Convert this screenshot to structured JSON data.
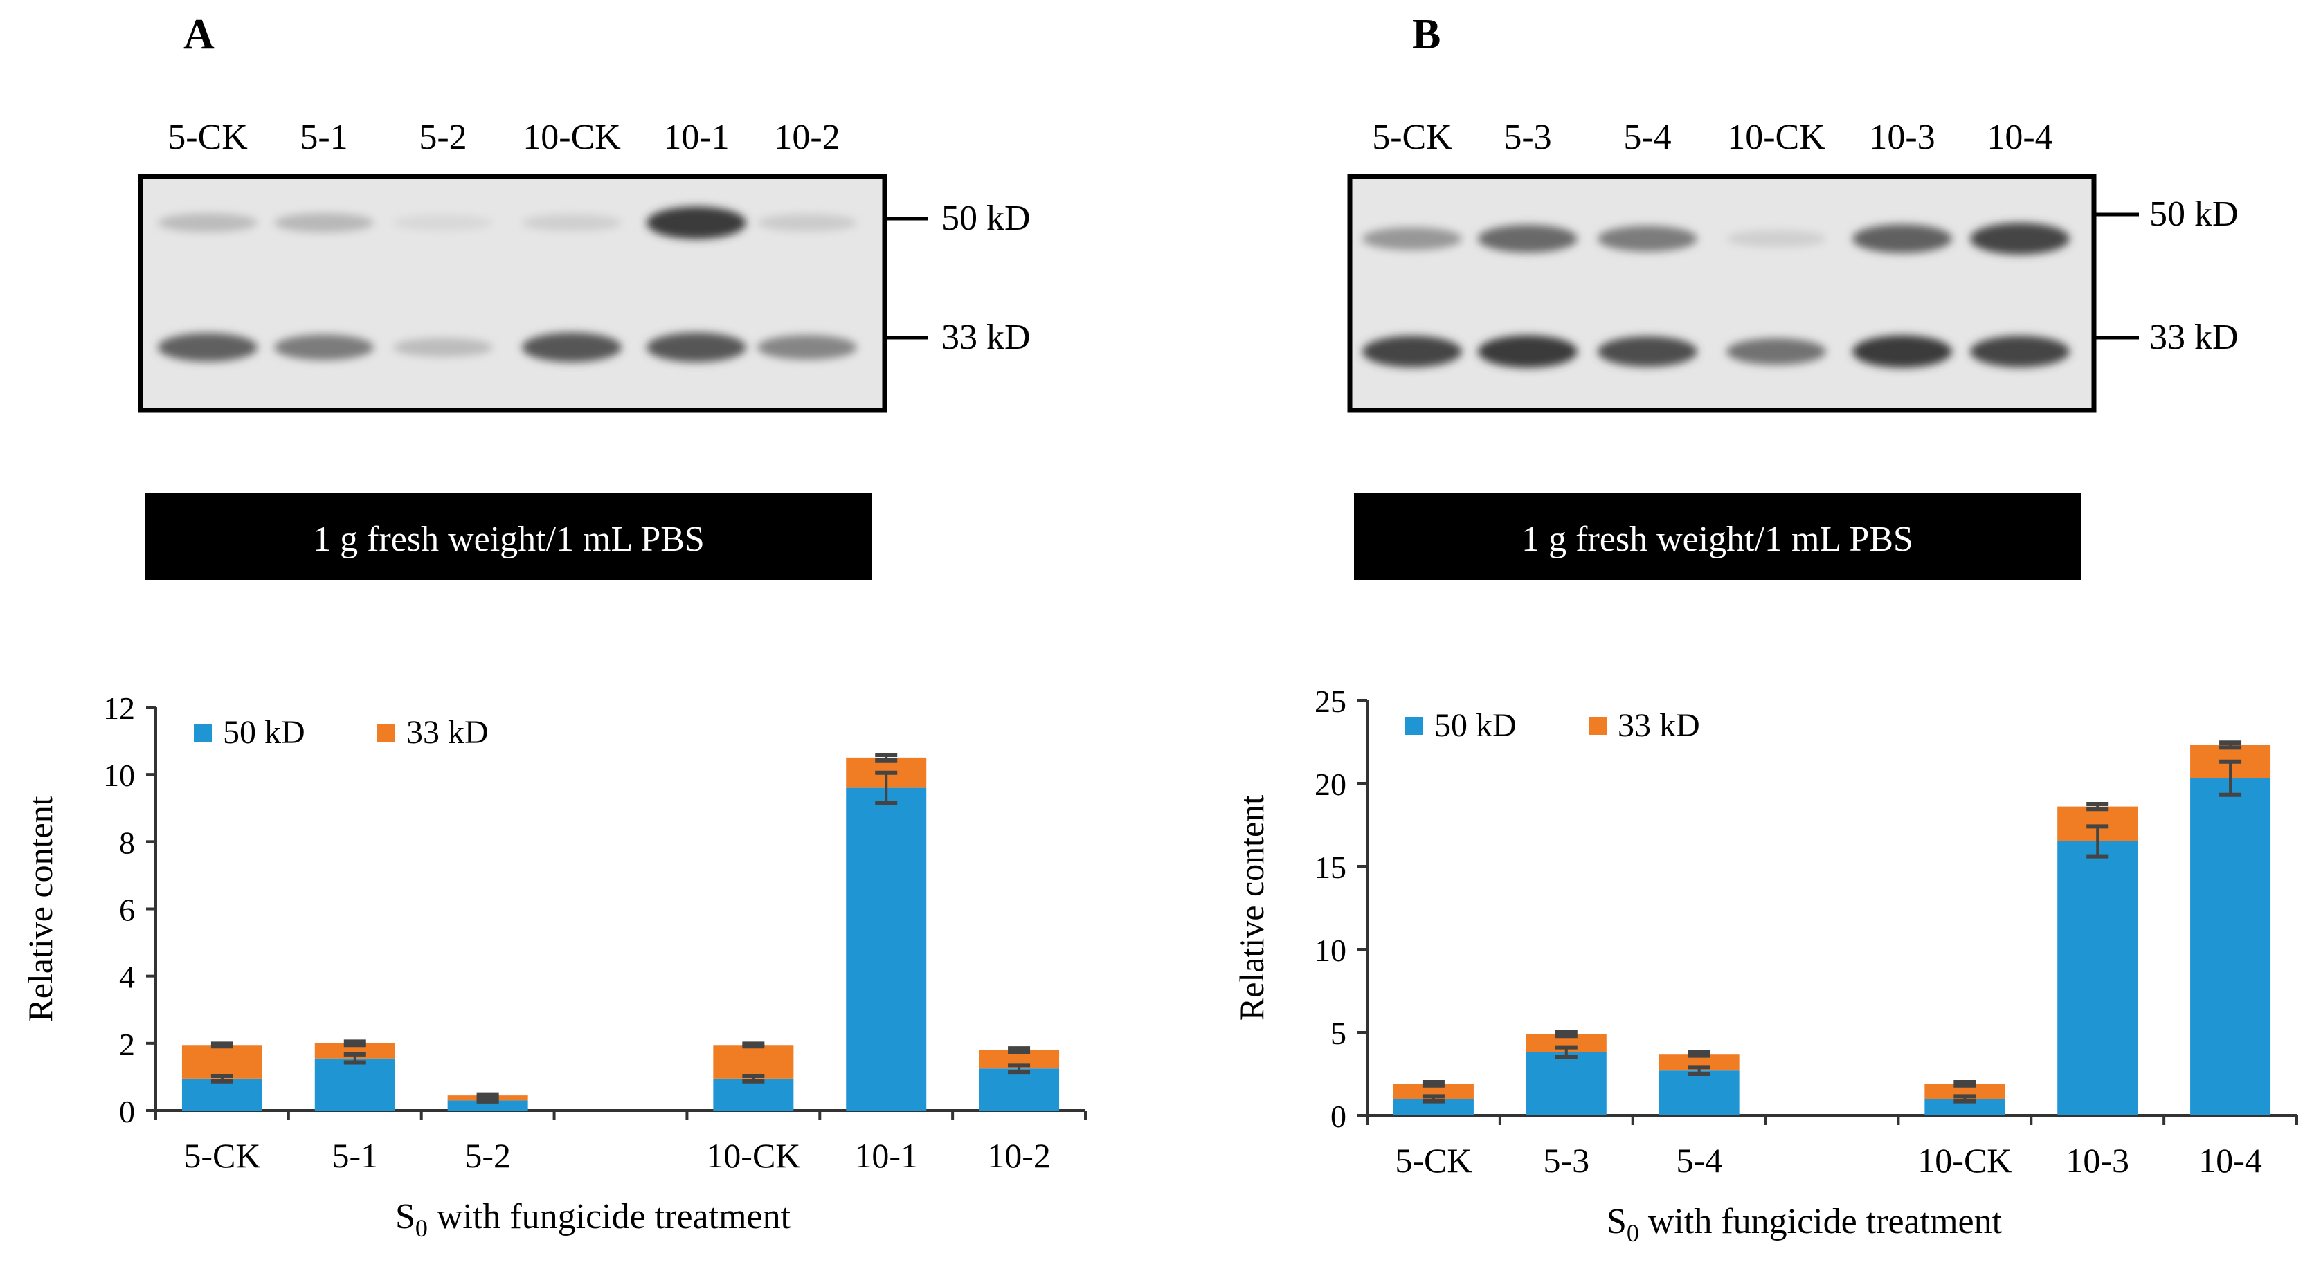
{
  "panels": [
    {
      "letter": "A",
      "lanes": [
        "5-CK",
        "5-1",
        "5-2",
        "10-CK",
        "10-1",
        "10-2"
      ],
      "band_markers": [
        "50 kD",
        "33 kD"
      ],
      "band_intensity": {
        "50 kD": [
          0.2,
          0.22,
          0.05,
          0.1,
          0.9,
          0.12
        ],
        "33 kD": [
          0.7,
          0.55,
          0.2,
          0.75,
          0.75,
          0.5
        ]
      },
      "caption": "1 g  fresh weight/1 mL PBS"
    },
    {
      "letter": "B",
      "lanes": [
        "5-CK",
        "5-3",
        "5-4",
        "10-CK",
        "10-3",
        "10-4"
      ],
      "band_markers": [
        "50 kD",
        "33 kD"
      ],
      "band_intensity": {
        "50 kD": [
          0.4,
          0.65,
          0.55,
          0.1,
          0.7,
          0.85
        ],
        "33 kD": [
          0.85,
          0.9,
          0.8,
          0.6,
          0.9,
          0.85
        ]
      },
      "caption": "1 g  fresh weight/1 mL PBS"
    }
  ],
  "colors": {
    "series_50": "#1f95d4",
    "series_33": "#f07c24",
    "error_bar": "#444444",
    "axis": "#333333"
  },
  "chart_data": [
    {
      "type": "bar",
      "stacked": true,
      "categories": [
        "5-CK",
        "5-1",
        "5-2",
        "",
        "10-CK",
        "10-1",
        "10-2"
      ],
      "series": [
        {
          "name": "50 kD",
          "values": [
            0.95,
            1.55,
            0.3,
            null,
            0.95,
            9.6,
            1.25
          ]
        },
        {
          "name": "33 kD",
          "values": [
            1.0,
            0.45,
            0.15,
            null,
            1.0,
            0.9,
            0.55
          ]
        }
      ],
      "errors_50": [
        0.08,
        0.12,
        0.03,
        null,
        0.08,
        0.45,
        0.1
      ],
      "errors_total": [
        0.04,
        0.05,
        0.03,
        null,
        0.04,
        0.08,
        0.05
      ],
      "xlabel_prefix": "S",
      "xlabel_sub": "0",
      "xlabel_suffix": " with fungicide treatment",
      "ylabel": "Relative content",
      "ylim": [
        0,
        12
      ],
      "yticks": [
        0,
        2,
        4,
        6,
        8,
        10,
        12
      ],
      "legend": "top-left",
      "grid": false
    },
    {
      "type": "bar",
      "stacked": true,
      "categories": [
        "5-CK",
        "5-3",
        "5-4",
        "",
        "10-CK",
        "10-3",
        "10-4"
      ],
      "series": [
        {
          "name": "50 kD",
          "values": [
            1.0,
            3.8,
            2.7,
            null,
            1.0,
            16.5,
            20.3
          ]
        },
        {
          "name": "33 kD",
          "values": [
            0.9,
            1.1,
            1.0,
            null,
            0.9,
            2.1,
            2.0
          ]
        }
      ],
      "errors_50": [
        0.15,
        0.3,
        0.2,
        null,
        0.15,
        0.9,
        1.0
      ],
      "errors_total": [
        0.1,
        0.12,
        0.1,
        null,
        0.1,
        0.15,
        0.15
      ],
      "xlabel_prefix": "S",
      "xlabel_sub": "0",
      "xlabel_suffix": " with fungicide treatment",
      "ylabel": "Relative content",
      "ylim": [
        0,
        25
      ],
      "yticks": [
        0,
        5,
        10,
        15,
        20,
        25
      ],
      "legend": "top-left",
      "grid": false
    }
  ]
}
